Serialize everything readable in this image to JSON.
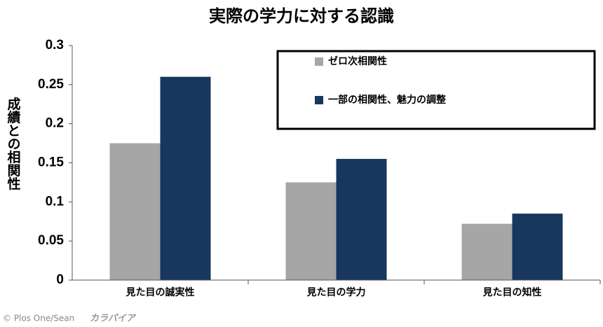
{
  "chart_data": {
    "type": "bar",
    "title": "実際の学力に対する認識",
    "ylabel": "成績との相関性",
    "categories": [
      "見た目の誠実性",
      "見た目の学力",
      "見た目の知性"
    ],
    "series": [
      {
        "name": "ゼロ次相関性",
        "color": "#a6a6a6",
        "values": [
          0.175,
          0.125,
          0.072
        ]
      },
      {
        "name": "一部の相関性、魅力の調整",
        "color": "#17375e",
        "values": [
          0.26,
          0.155,
          0.085
        ]
      }
    ],
    "ylim": [
      0,
      0.3
    ],
    "yticks": [
      0,
      0.05,
      0.1,
      0.15,
      0.2,
      0.25,
      0.3
    ],
    "grid": false,
    "legend": "top-right",
    "credit": "© Plos One/Sean",
    "watermark": "カラパイア"
  }
}
